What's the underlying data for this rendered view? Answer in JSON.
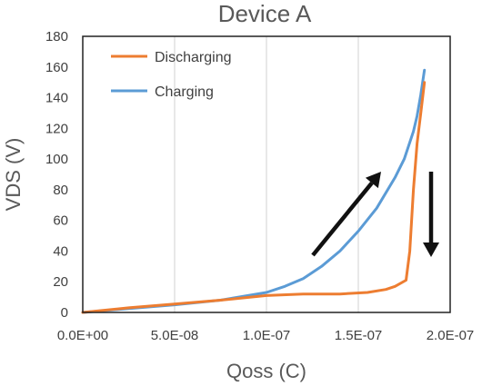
{
  "chart_data": {
    "type": "line",
    "title": "Device A",
    "xlabel": "Qoss (C)",
    "ylabel": "VDS (V)",
    "xlim": [
      0,
      2e-07
    ],
    "ylim": [
      0,
      180
    ],
    "x_ticks": [
      0,
      5e-08,
      1e-07,
      1.5e-07,
      2e-07
    ],
    "x_tick_labels": [
      "0.0E+00",
      "5.0E-08",
      "1.0E-07",
      "1.5E-07",
      "2.0E-07"
    ],
    "y_ticks": [
      0,
      20,
      40,
      60,
      80,
      100,
      120,
      140,
      160,
      180
    ],
    "y_tick_labels": [
      "0",
      "20",
      "40",
      "60",
      "80",
      "100",
      "120",
      "140",
      "160",
      "180"
    ],
    "grid": "vertical",
    "legend_position": "top-left",
    "series": [
      {
        "name": "Discharging",
        "color": "#ed7d31",
        "x": [
          0,
          2.5e-08,
          5e-08,
          7.5e-08,
          1e-07,
          1.2e-07,
          1.4e-07,
          1.55e-07,
          1.65e-07,
          1.7e-07,
          1.76e-07,
          1.78e-07,
          1.8e-07,
          1.82e-07,
          1.84e-07,
          1.86e-07
        ],
        "y": [
          0,
          3,
          5.5,
          8,
          11,
          12,
          12,
          13,
          15,
          17,
          21,
          40,
          80,
          110,
          130,
          150
        ]
      },
      {
        "name": "Charging",
        "color": "#5b9bd5",
        "x": [
          0,
          2.5e-08,
          5e-08,
          7.5e-08,
          1e-07,
          1.1e-07,
          1.2e-07,
          1.3e-07,
          1.4e-07,
          1.5e-07,
          1.6e-07,
          1.7e-07,
          1.75e-07,
          1.8e-07,
          1.82e-07,
          1.84e-07,
          1.86e-07
        ],
        "y": [
          0,
          2.5,
          5,
          8,
          13,
          17,
          22,
          30,
          40,
          53,
          68,
          88,
          100,
          118,
          128,
          142,
          158
        ]
      }
    ],
    "annotations": [
      {
        "type": "arrow",
        "direction": "up-right",
        "meaning": "charging direction"
      },
      {
        "type": "arrow",
        "direction": "down",
        "meaning": "discharging direction"
      }
    ]
  }
}
